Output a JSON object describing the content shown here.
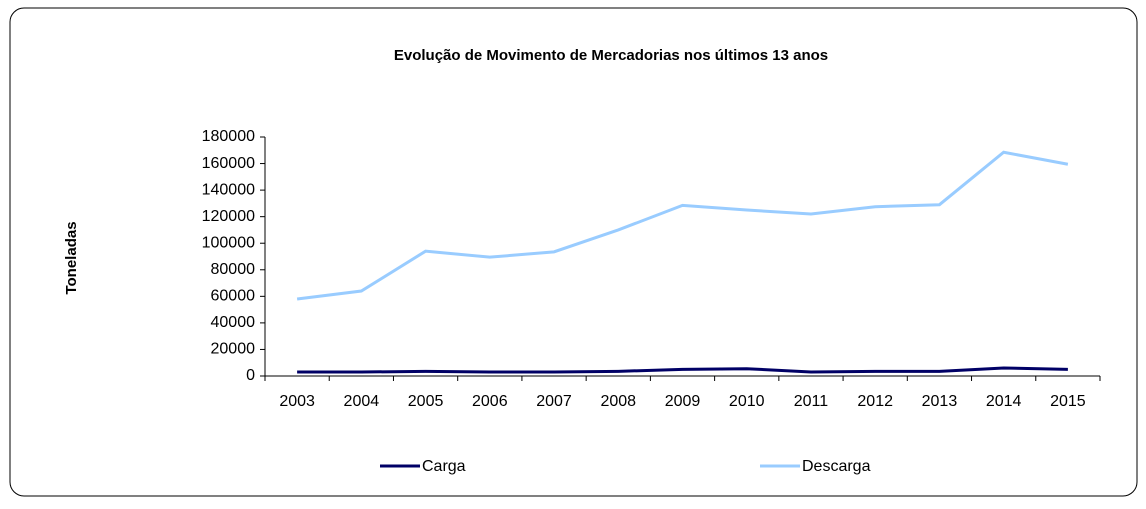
{
  "chart_data": {
    "type": "line",
    "title": "Evolução de Movimento de  Mercadorias  nos últimos 13 anos",
    "y_label": "Toneladas",
    "categories": [
      "2003",
      "2004",
      "2005",
      "2006",
      "2007",
      "2008",
      "2009",
      "2010",
      "2011",
      "2012",
      "2013",
      "2014",
      "2015"
    ],
    "series": [
      {
        "name": "Carga",
        "color": "#000066",
        "values": [
          3000,
          3000,
          3500,
          3000,
          3000,
          3500,
          5000,
          5500,
          3000,
          3500,
          3500,
          6000,
          5000
        ]
      },
      {
        "name": "Descarga",
        "color": "#99ccff",
        "values": [
          58000,
          64000,
          94000,
          89500,
          93500,
          110000,
          128500,
          125000,
          122000,
          127500,
          129000,
          168500,
          159500
        ]
      }
    ],
    "ylim": [
      0,
      180000
    ],
    "yticks": [
      0,
      20000,
      40000,
      60000,
      80000,
      100000,
      120000,
      140000,
      160000,
      180000
    ],
    "legend": "bottom"
  }
}
